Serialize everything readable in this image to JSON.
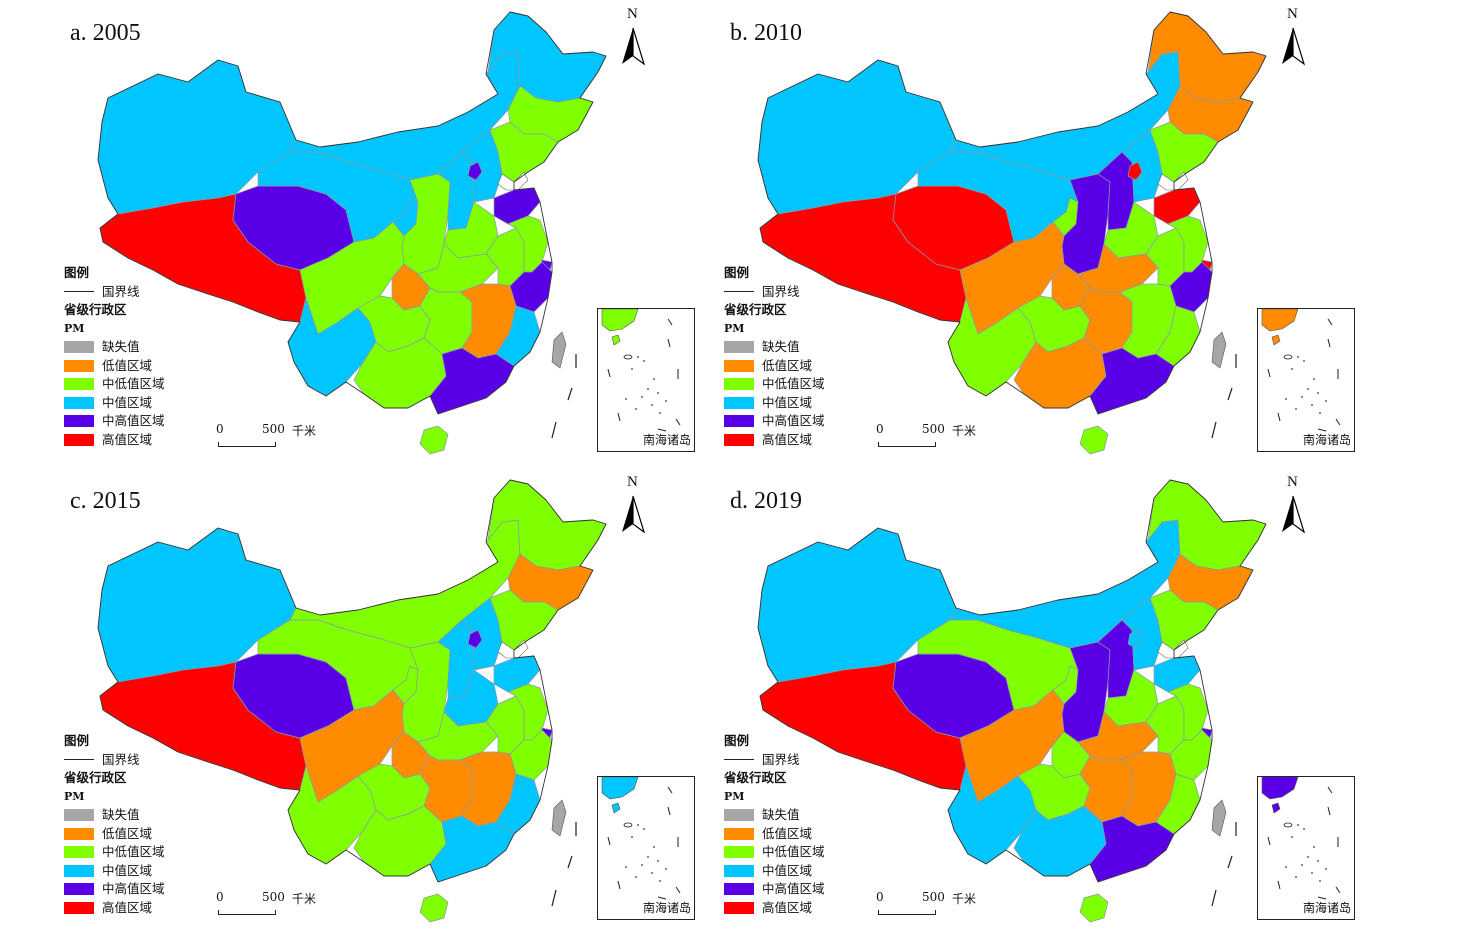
{
  "colors": {
    "missing": "#a6a6a6",
    "low": "#ff8c00",
    "mid_low": "#7fff00",
    "mid": "#00c5ff",
    "mid_high": "#5a00e6",
    "high": "#ff0000",
    "taiwan": "#a6a6a6"
  },
  "legend": {
    "title": "图例",
    "boundary_label": "国界线",
    "admin_label": "省级行政区",
    "field_label": "PM",
    "classes": [
      {
        "key": "missing",
        "label": "缺失值"
      },
      {
        "key": "low",
        "label": "低值区域"
      },
      {
        "key": "mid_low",
        "label": "中低值区域"
      },
      {
        "key": "mid",
        "label": "中值区域"
      },
      {
        "key": "mid_high",
        "label": "中高值区域"
      },
      {
        "key": "high",
        "label": "高值区域"
      }
    ]
  },
  "north_arrow": {
    "label": "N",
    "icon": "north-arrow-icon"
  },
  "scale_bar": {
    "zero": "0",
    "distance": "500",
    "unit": "千米"
  },
  "inset_label": "南海诸岛",
  "panels": [
    {
      "title": "a. 2005",
      "regions": {
        "xinjiang": "mid",
        "xizang": "high",
        "qinghai": "mid_high",
        "gansu": "mid",
        "neimenggu": "mid",
        "heilongjiang": "mid",
        "jilin": "mid_low",
        "liaoning": "mid_low",
        "ningxia": "mid",
        "shaanxi": "mid_low",
        "shanxi": "mid",
        "hebei": "mid",
        "beijing": "mid_high",
        "shandong": "mid_high",
        "henan": "mid_low",
        "sichuan": "mid_low",
        "chongqing": "low",
        "hubei": "mid_low",
        "anhui": "mid_low",
        "jiangsu": "mid_low",
        "shanghai": "mid_high",
        "zhejiang": "mid_high",
        "yunnan": "mid",
        "guizhou": "mid_low",
        "hunan": "mid_low",
        "jiangxi": "low",
        "fujian": "mid",
        "guangxi": "mid_low",
        "guangdong": "mid_high",
        "hainan": "mid_low",
        "inset": "mid_low"
      }
    },
    {
      "title": "b. 2010",
      "regions": {
        "xinjiang": "mid",
        "xizang": "high",
        "qinghai": "high",
        "gansu": "mid",
        "neimenggu": "mid",
        "heilongjiang": "low",
        "jilin": "low",
        "liaoning": "mid_low",
        "ningxia": "mid_low",
        "shaanxi": "mid_high",
        "shanxi": "mid_high",
        "hebei": "mid",
        "beijing": "high",
        "shandong": "high",
        "henan": "mid_low",
        "sichuan": "low",
        "chongqing": "low",
        "hubei": "low",
        "anhui": "mid_low",
        "jiangsu": "mid_low",
        "shanghai": "high",
        "zhejiang": "mid_high",
        "yunnan": "mid_low",
        "guizhou": "mid_low",
        "hunan": "low",
        "jiangxi": "mid_low",
        "fujian": "mid_low",
        "guangxi": "low",
        "guangdong": "mid_high",
        "hainan": "mid_low",
        "inset": "low"
      }
    },
    {
      "title": "c. 2015",
      "regions": {
        "xinjiang": "mid",
        "xizang": "high",
        "qinghai": "mid_high",
        "gansu": "mid_low",
        "neimenggu": "mid_low",
        "heilongjiang": "mid_low",
        "jilin": "low",
        "liaoning": "mid_low",
        "ningxia": "mid_low",
        "shaanxi": "mid_low",
        "shanxi": "mid",
        "hebei": "mid",
        "beijing": "mid_high",
        "shandong": "mid",
        "henan": "mid",
        "sichuan": "low",
        "chongqing": "low",
        "hubei": "mid_low",
        "anhui": "mid_low",
        "jiangsu": "mid_low",
        "shanghai": "mid_high",
        "zhejiang": "mid_low",
        "yunnan": "mid_low",
        "guizhou": "mid_low",
        "hunan": "low",
        "jiangxi": "low",
        "fujian": "mid",
        "guangxi": "mid_low",
        "guangdong": "mid",
        "hainan": "mid_low",
        "inset": "mid"
      }
    },
    {
      "title": "d. 2019",
      "regions": {
        "xinjiang": "mid",
        "xizang": "high",
        "qinghai": "mid_high",
        "gansu": "mid_low",
        "neimenggu": "mid",
        "heilongjiang": "mid_low",
        "jilin": "low",
        "liaoning": "mid_low",
        "ningxia": "mid_low",
        "shaanxi": "mid_high",
        "shanxi": "mid_high",
        "hebei": "mid",
        "beijing": "mid",
        "shandong": "mid",
        "henan": "mid_low",
        "sichuan": "low",
        "chongqing": "mid_low",
        "hubei": "low",
        "anhui": "mid_low",
        "jiangsu": "mid_low",
        "shanghai": "mid_high",
        "zhejiang": "mid_low",
        "yunnan": "mid",
        "guizhou": "mid_low",
        "hunan": "low",
        "jiangxi": "low",
        "fujian": "mid_low",
        "guangxi": "mid",
        "guangdong": "mid_high",
        "hainan": "mid_low",
        "inset": "mid_high"
      }
    }
  ]
}
